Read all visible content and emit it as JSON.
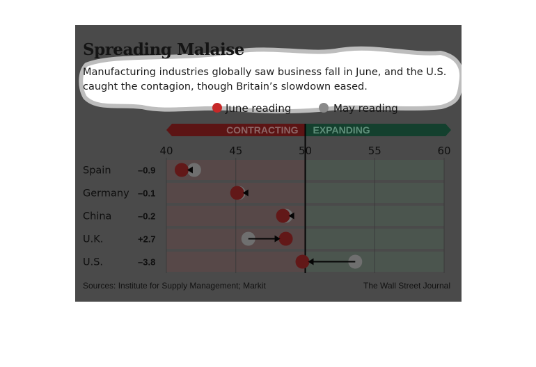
{
  "chart_data": {
    "type": "dot-plot",
    "title": "Spreading Malaise",
    "subtitle": "Manufacturing industries globally saw business fall in June, and the U.S. caught the contagion, though Britain’s slowdown eased.",
    "legend": [
      {
        "name": "June reading",
        "color": "#c62828"
      },
      {
        "name": "May reading",
        "color": "#8a8a8a"
      }
    ],
    "legend_position": "top",
    "zones": {
      "contracting": "CONTRACTING",
      "expanding": "EXPANDING",
      "threshold": 50
    },
    "xlim": [
      40,
      60
    ],
    "xticks": [
      "40",
      "45",
      "50",
      "55",
      "60"
    ],
    "categories": [
      "Spain",
      "Germany",
      "China",
      "U.K.",
      "U.S."
    ],
    "changes": [
      "–0.9",
      "–0.1",
      "–0.2",
      "+2.7",
      "–3.8"
    ],
    "series": [
      {
        "name": "May reading",
        "values": [
          42.0,
          45.2,
          48.6,
          45.9,
          53.6
        ]
      },
      {
        "name": "June reading",
        "values": [
          41.1,
          45.1,
          48.4,
          48.6,
          49.8
        ]
      }
    ],
    "source": "Sources: Institute for Supply Management; Markit",
    "credit": "The Wall Street Journal"
  }
}
